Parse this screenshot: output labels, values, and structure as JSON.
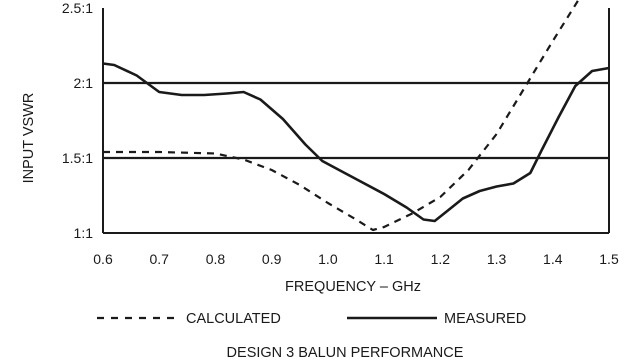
{
  "chart_data": {
    "type": "line",
    "title": "DESIGN 3 BALUN PERFORMANCE",
    "xlabel": "FREQUENCY – GHz",
    "ylabel": "INPUT VSWR",
    "xlim": [
      0.6,
      1.5
    ],
    "ylim": [
      1.0,
      2.5
    ],
    "x_ticks": [
      0.6,
      0.7,
      0.8,
      0.9,
      1.0,
      1.1,
      1.2,
      1.3,
      1.4,
      1.5
    ],
    "x_tick_labels": [
      "0.6",
      "0.7",
      "0.8",
      "0.9",
      "1.0",
      "1.1",
      "1.2",
      "1.3",
      "1.4",
      "1.5"
    ],
    "y_ticks": [
      1.0,
      1.5,
      2.0,
      2.5
    ],
    "y_tick_labels": [
      "1:1",
      "1.5:1",
      "2:1",
      "2.5:1"
    ],
    "reference_lines": [
      1.5,
      2.0
    ],
    "legend_placement": "bottom",
    "series": [
      {
        "name": "CALCULATED",
        "style": "dashed",
        "color": "#1a1a1a",
        "x": [
          0.6,
          0.7,
          0.8,
          0.85,
          0.9,
          0.95,
          1.0,
          1.05,
          1.08,
          1.1,
          1.15,
          1.2,
          1.25,
          1.3,
          1.35,
          1.4,
          1.45
        ],
        "y": [
          1.54,
          1.54,
          1.53,
          1.49,
          1.42,
          1.32,
          1.2,
          1.09,
          1.02,
          1.04,
          1.13,
          1.24,
          1.42,
          1.66,
          1.97,
          2.28,
          2.58
        ]
      },
      {
        "name": "MEASURED",
        "style": "solid",
        "color": "#1a1a1a",
        "x": [
          0.6,
          0.62,
          0.66,
          0.7,
          0.74,
          0.78,
          0.82,
          0.85,
          0.88,
          0.92,
          0.96,
          0.99,
          1.02,
          1.06,
          1.1,
          1.14,
          1.17,
          1.19,
          1.21,
          1.24,
          1.27,
          1.3,
          1.33,
          1.36,
          1.38,
          1.41,
          1.44,
          1.47,
          1.5
        ],
        "y": [
          2.13,
          2.12,
          2.05,
          1.94,
          1.92,
          1.92,
          1.93,
          1.94,
          1.89,
          1.76,
          1.59,
          1.48,
          1.42,
          1.34,
          1.26,
          1.17,
          1.09,
          1.08,
          1.14,
          1.23,
          1.28,
          1.31,
          1.33,
          1.4,
          1.55,
          1.77,
          1.98,
          2.08,
          2.1
        ]
      }
    ]
  }
}
